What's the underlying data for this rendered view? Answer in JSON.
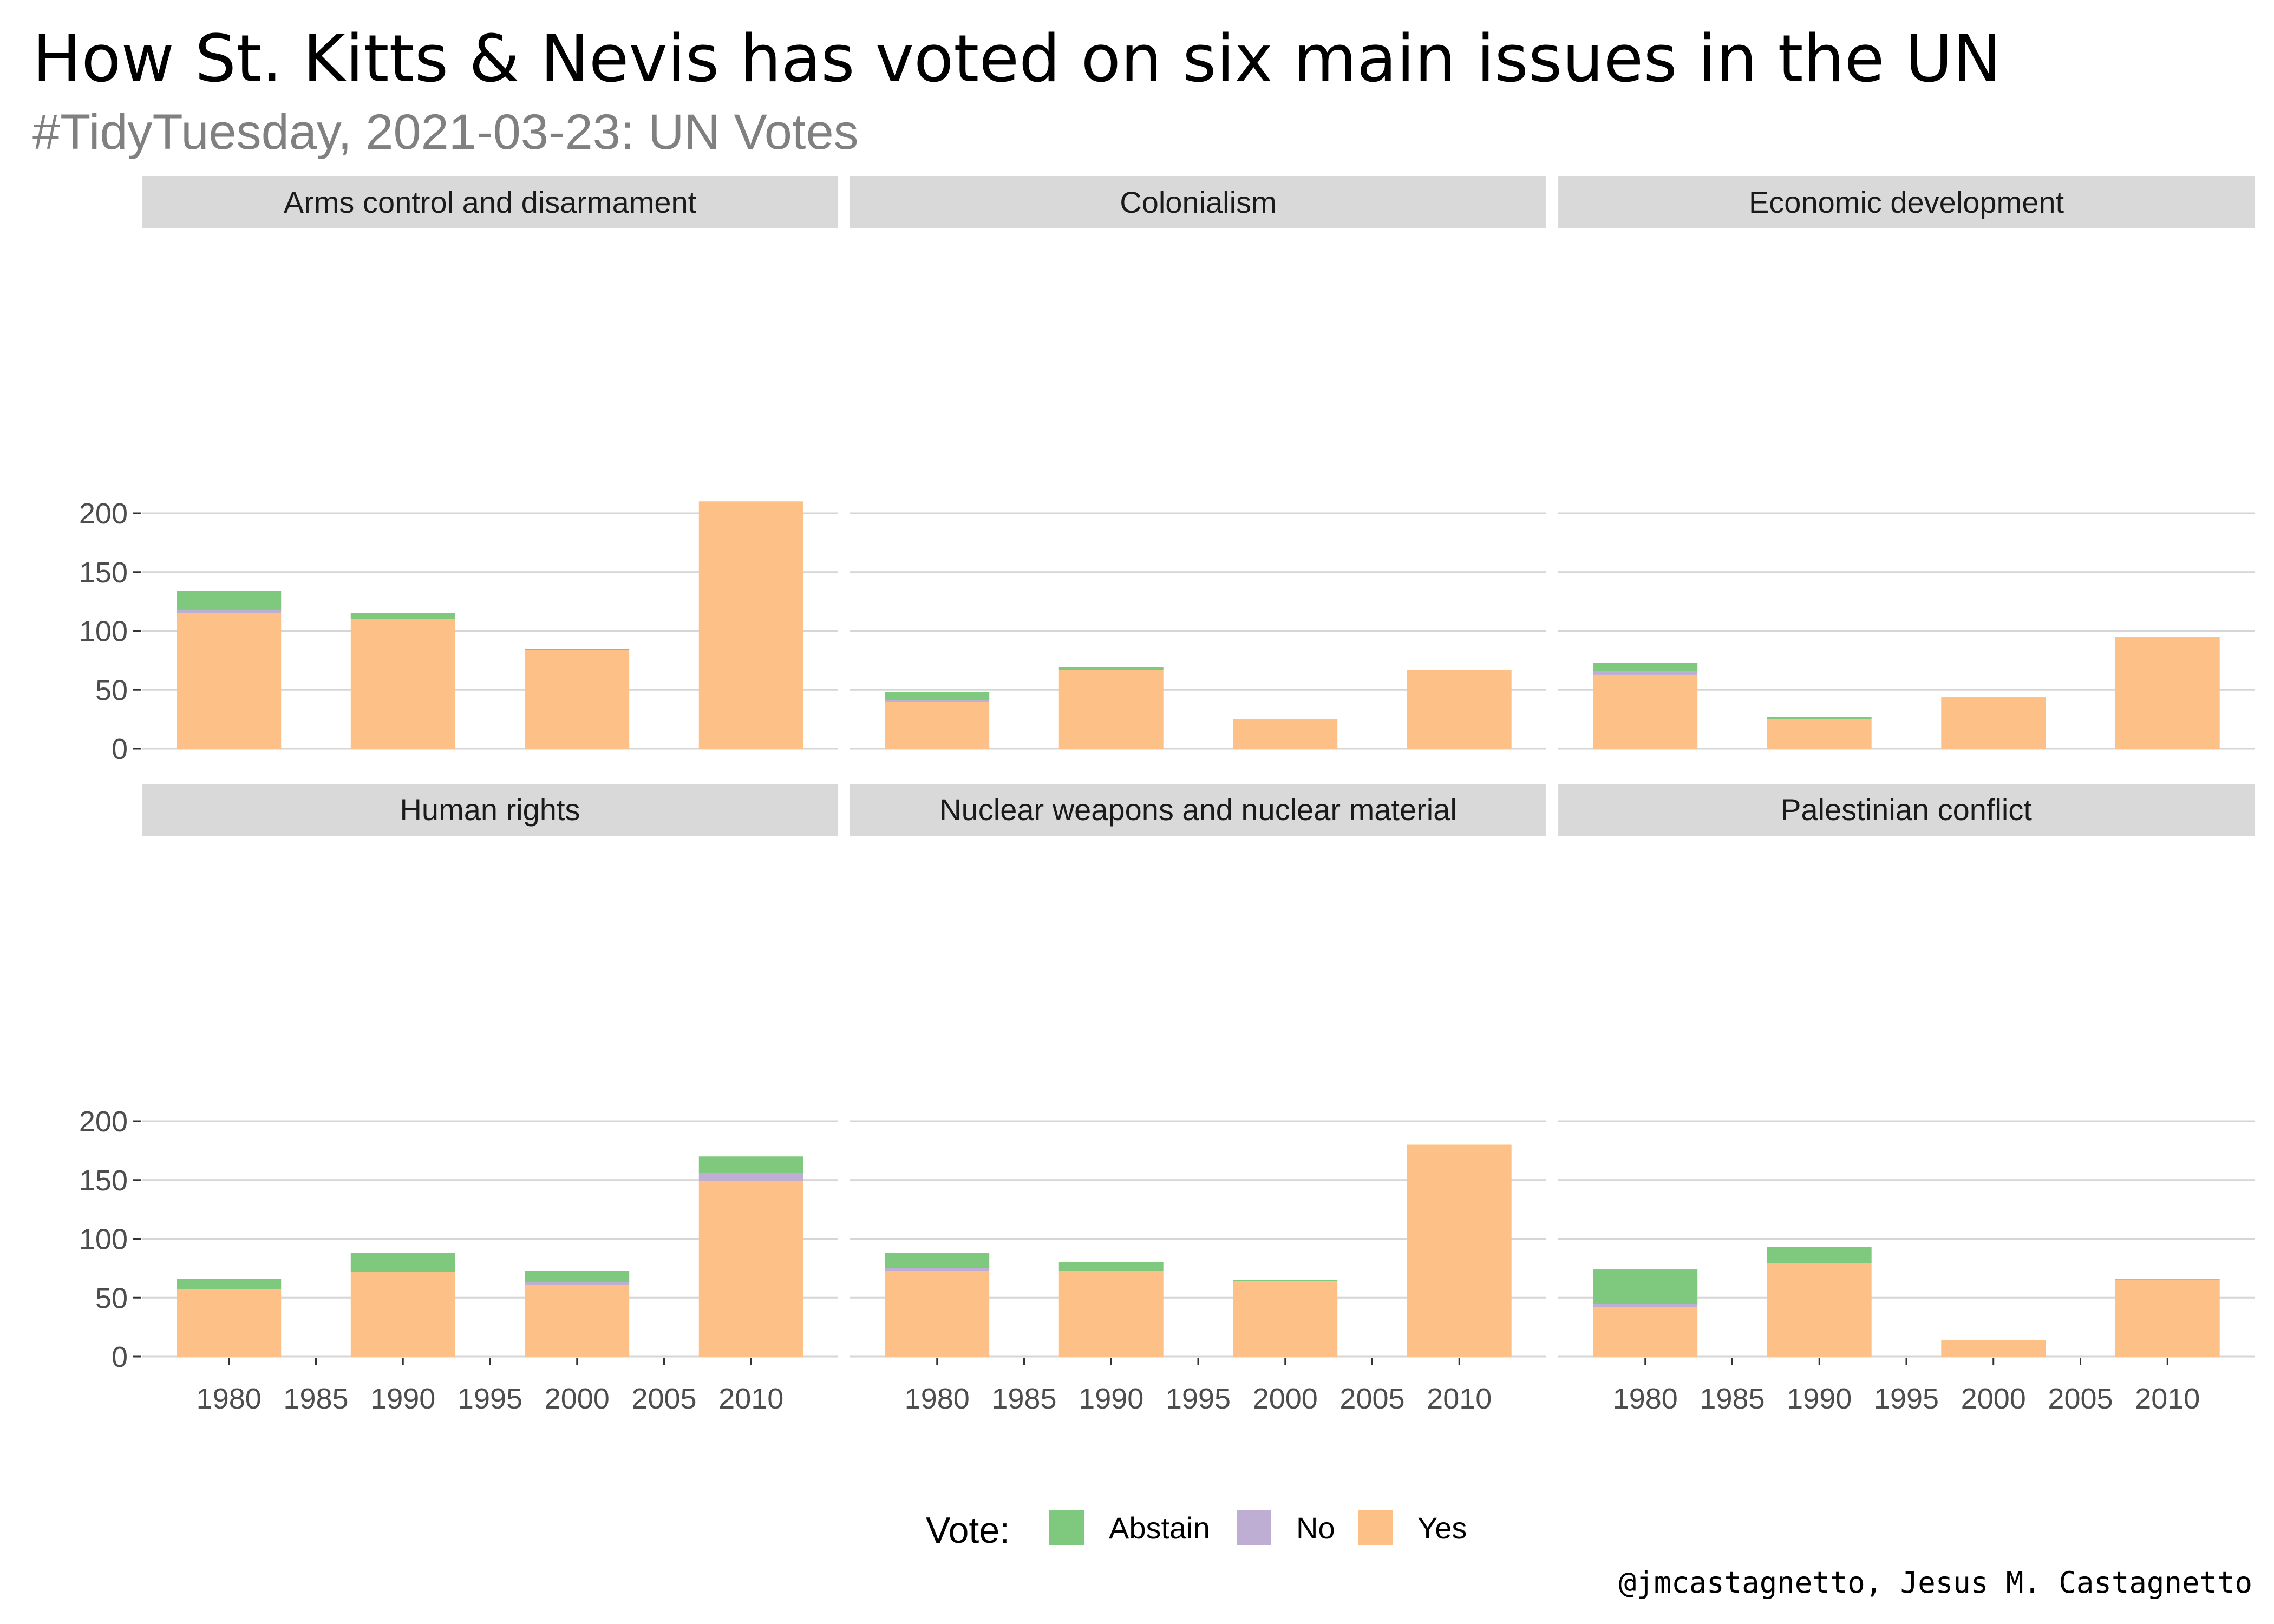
{
  "title": "How St. Kitts & Nevis has voted on six main issues in the UN",
  "subtitle": "#TidyTuesday, 2021-03-23: UN Votes",
  "caption": "@jmcastagnetto, Jesus M. Castagnetto",
  "colors": {
    "Abstain": "#7fc97f",
    "No": "#beaed4",
    "Yes": "#fdc086"
  },
  "chart_data": {
    "type": "bar",
    "stacked": true,
    "facets": [
      "Arms control and disarmament",
      "Colonialism",
      "Economic development",
      "Human rights",
      "Nuclear weapons and nuclear material",
      "Palestinian conflict"
    ],
    "x": [
      1980,
      1990,
      2000,
      2010
    ],
    "xticks": [
      1980,
      1985,
      1990,
      1995,
      2000,
      2005,
      2010
    ],
    "xlim": [
      1975,
      2015
    ],
    "yticks": [
      0,
      50,
      100,
      150,
      200
    ],
    "ylim": [
      0,
      220
    ],
    "grid": true,
    "legend": {
      "title": "Vote:",
      "position": "bottom",
      "entries": [
        "Abstain",
        "No",
        "Yes"
      ]
    },
    "stack_order": [
      "Yes",
      "No",
      "Abstain"
    ],
    "panels": [
      {
        "facet": "Arms control and disarmament",
        "series": {
          "Yes": [
            115,
            110,
            84,
            210
          ],
          "No": [
            3,
            0,
            0,
            0
          ],
          "Abstain": [
            16,
            5,
            1,
            0
          ]
        }
      },
      {
        "facet": "Colonialism",
        "series": {
          "Yes": [
            40,
            67,
            25,
            67
          ],
          "No": [
            1,
            0,
            0,
            0
          ],
          "Abstain": [
            7,
            2,
            0,
            0
          ]
        }
      },
      {
        "facet": "Economic development",
        "series": {
          "Yes": [
            63,
            25,
            44,
            95
          ],
          "No": [
            3,
            0,
            0,
            0
          ],
          "Abstain": [
            7,
            2,
            0,
            0
          ]
        }
      },
      {
        "facet": "Human rights",
        "series": {
          "Yes": [
            57,
            72,
            61,
            149
          ],
          "No": [
            0,
            0,
            2,
            7
          ],
          "Abstain": [
            9,
            16,
            10,
            14
          ]
        }
      },
      {
        "facet": "Nuclear weapons and nuclear material",
        "series": {
          "Yes": [
            73,
            73,
            64,
            180
          ],
          "No": [
            2,
            0,
            0,
            0
          ],
          "Abstain": [
            13,
            7,
            1,
            0
          ]
        }
      },
      {
        "facet": "Palestinian conflict",
        "series": {
          "Yes": [
            42,
            79,
            14,
            65
          ],
          "No": [
            3,
            0,
            0,
            1
          ],
          "Abstain": [
            29,
            14,
            0,
            0
          ]
        }
      }
    ]
  }
}
